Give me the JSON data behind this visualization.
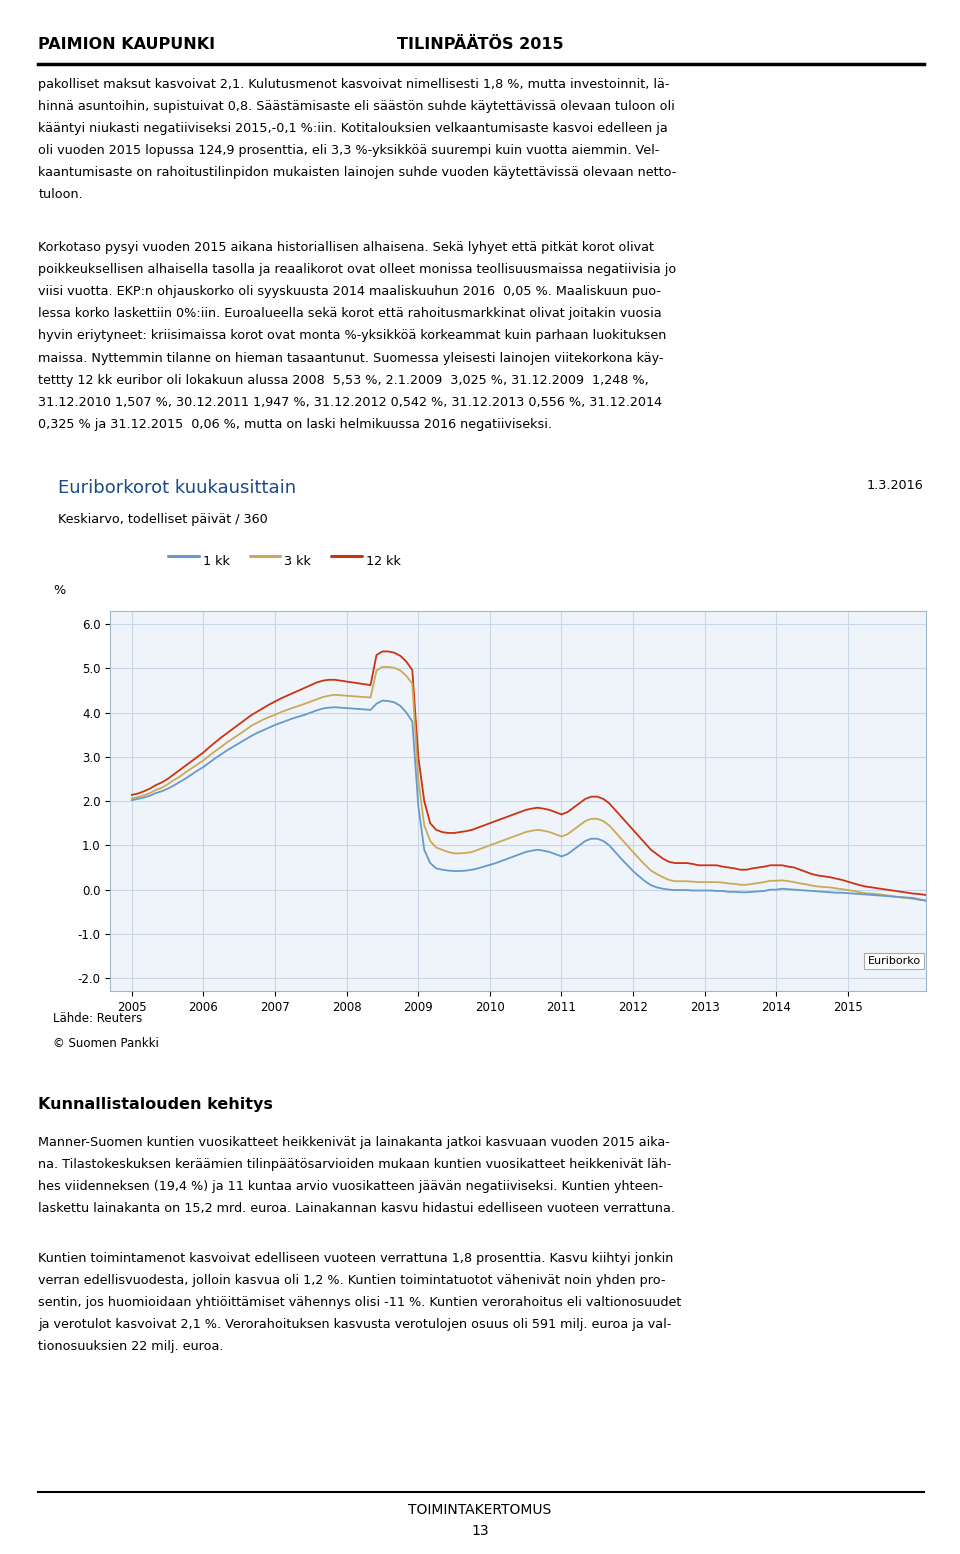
{
  "header_left": "PAIMION KAUPUNKI",
  "header_right": "TILINPÄÄTÖS 2015",
  "footer_center": "TOIMINTAKERTOMUS",
  "footer_page": "13",
  "chart_title": "Euriborkorot kuukausittain",
  "chart_subtitle": "Keskiarvo, todelliset päivät / 360",
  "chart_date_label": "1.3.2016",
  "chart_legend": [
    "1 kk",
    "3 kk",
    "12 kk"
  ],
  "chart_legend_colors": [
    "#6699CC",
    "#CCAA55",
    "#CC3311"
  ],
  "chart_ylabel": "%",
  "chart_yticks": [
    6.0,
    5.0,
    4.0,
    3.0,
    2.0,
    1.0,
    0.0,
    -1.0,
    -2.0
  ],
  "chart_xticks": [
    2005,
    2006,
    2007,
    2008,
    2009,
    2010,
    2011,
    2012,
    2013,
    2014,
    2015
  ],
  "chart_source": "Lähde: Reuters",
  "chart_copyright": "© Suomen Pankki",
  "euribor_label": "Euriborko",
  "section_heading": "Kunnallistalouden kehitys",
  "background_color": "#ffffff",
  "text_color": "#000000",
  "chart_grid_color": "#c8d8e8",
  "chart_border_color": "#a0b8cc",
  "chart_face_color": "#EEF4FA",
  "body1_lines": [
    "pakolliset maksut kasvoivat 2,1. Kulutusmenot kasvoivat nimellisesti 1,8 %, mutta investoinnit, lä-",
    "hinnä asuntoihin, supistuivat 0,8. Säästämisaste eli säästön suhde käytettävissä olevaan tuloon oli",
    "kääntyi niukasti negatiiviseksi 2015,-0,1 %:iin. Kotitalouksien velkaantumisaste kasvoi edelleen ja",
    "oli vuoden 2015 lopussa 124,9 prosenttia, eli 3,3 %-yksikköä suurempi kuin vuotta aiemmin. Vel-",
    "kaantumisaste on rahoitustilinpidon mukaisten lainojen suhde vuoden käytettävissä olevaan netto-",
    "tuloon."
  ],
  "body2_lines": [
    "Korkotaso pysyi vuoden 2015 aikana historiallisen alhaisena. Sekä lyhyet että pitkät korot olivat",
    "poikkeuksellisen alhaisella tasolla ja reaalikorot ovat olleet monissa teollisuusmaissa negatiivisia jo",
    "viisi vuotta. EKP:n ohjauskorko oli syyskuusta 2014 maaliskuuhun 2016  0,05 %. Maaliskuun puo-",
    "lessa korko laskettiin 0%:iin. Euroalueella sekä korot että rahoitusmarkkinat olivat joitakin vuosia",
    "hyvin eriytyneet: kriisimaissa korot ovat monta %-yksikköä korkeammat kuin parhaan luokituksen",
    "maissa. Nyttemmin tilanne on hieman tasaantunut. Suomessa yleisesti lainojen viitekorkona käy-",
    "tettty 12 kk euribor oli lokakuun alussa 2008  5,53 %, 2.1.2009  3,025 %, 31.12.2009  1,248 %,",
    "31.12.2010 1,507 %, 30.12.2011 1,947 %, 31.12.2012 0,542 %, 31.12.2013 0,556 %, 31.12.2014",
    "0,325 % ja 31.12.2015  0,06 %, mutta on laski helmikuussa 2016 negatiiviseksi."
  ],
  "body3_lines": [
    "Manner-Suomen kuntien vuosikatteet heikkenivät ja lainakanta jatkoi kasvuaan vuoden 2015 aika-",
    "na. Tilastokeskuksen keräämien tilinpäätösarvioiden mukaan kuntien vuosikatteet heikkenivät läh-",
    "hes viidenneksen (19,4 %) ja 11 kuntaa arvio vuosikatteen jäävän negatiiviseksi. Kuntien yhteen-",
    "laskettu lainakanta on 15,2 mrd. euroa. Lainakannan kasvu hidastui edelliseen vuoteen verrattuna."
  ],
  "body4_lines": [
    "Kuntien toimintamenot kasvoivat edelliseen vuoteen verrattuna 1,8 prosenttia. Kasvu kiihtyi jonkin",
    "verran edellisvuodesta, jolloin kasvua oli 1,2 %. Kuntien toimintatuotot vähenivät noin yhden pro-",
    "sentin, jos huomioidaan yhtiöittämiset vähennys olisi -11 %. Kuntien verorahoitus eli valtionosuudet",
    "ja verotulot kasvoivat 2,1 %. Verorahoituksen kasvusta verotulojen osuus oli 591 milj. euroa ja val-",
    "tionosuuksien 22 milj. euroa."
  ]
}
